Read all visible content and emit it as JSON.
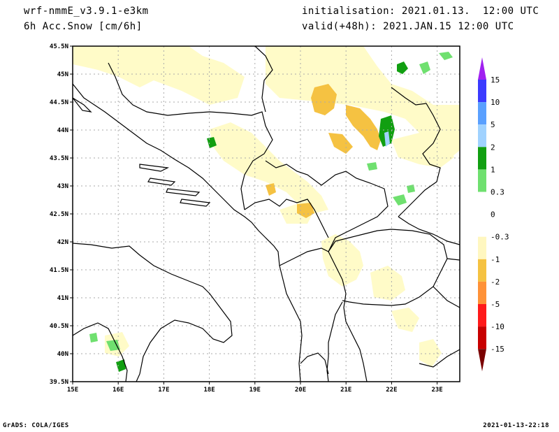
{
  "header": {
    "model": "wrf-nmmE_v3.9.1-e3km",
    "field": "6h Acc.Snow [cm/6h]",
    "init": "initialisation: 2021.01.13.  12:00 UTC",
    "valid": "valid(+48h): 2021.JAN.15 12:00 UTC"
  },
  "footer": {
    "left": "GrADS: COLA/IGES",
    "right": "2021-01-13-22:18"
  },
  "axes": {
    "lat_labels": [
      "45.5N",
      "45N",
      "44.5N",
      "44N",
      "43.5N",
      "43N",
      "42.5N",
      "42N",
      "41.5N",
      "41N",
      "40.5N",
      "40N",
      "39.5N"
    ],
    "lon_labels": [
      "15E",
      "16E",
      "17E",
      "18E",
      "19E",
      "20E",
      "21E",
      "22E",
      "23E"
    ]
  },
  "colorbar": {
    "labels": [
      "15",
      "10",
      "5",
      "2",
      "1",
      "0.3",
      "0",
      "-0.3",
      "-1",
      "-2",
      "-5",
      "-10",
      "-15"
    ],
    "colors": [
      "#9a2bff",
      "#3b3bff",
      "#5aa0ff",
      "#a0d2ff",
      "#119f11",
      "#6fe06f",
      "#ffffff",
      "#ffffd0",
      "#f5c242",
      "#ff9238",
      "#ff1a1a",
      "#c80000",
      "#8a0000"
    ],
    "top_arrow_color": "#a020f0",
    "bottom_arrow_color": "#7a0000"
  },
  "colors": {
    "light_yellow": "#fffbc8",
    "orange": "#f5c242",
    "light_green": "#6fe06f",
    "dark_green": "#119f11",
    "light_blue": "#a0d2ff"
  }
}
